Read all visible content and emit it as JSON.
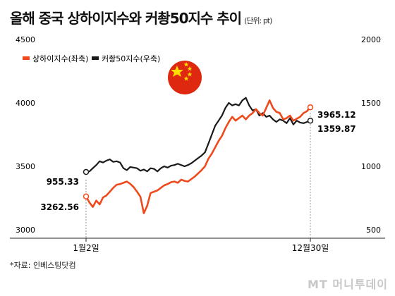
{
  "header": {
    "title": "올해 중국 상하이지수와 커촹50지수 추이",
    "unit": "(단위: pt)"
  },
  "source": "*자료: 인베스팅닷컴",
  "brand": {
    "logo_text": "MT 머니투데이"
  },
  "colors": {
    "shanghai": "#ee4a1c",
    "kechuang": "#1a1a1a",
    "flag_red": "#de2910",
    "flag_star": "#ffde00"
  },
  "chart_data": {
    "type": "line",
    "title": "올해 중국 상하이지수와 커촹50지수 추이",
    "x_ticks": [
      "1월2일",
      "12월30일"
    ],
    "y_left": {
      "ticks": [
        "3000",
        "3500",
        "4000",
        "4500"
      ],
      "ylim": [
        3000,
        4500
      ]
    },
    "y_right": {
      "ticks": [
        "500",
        "1000",
        "1500",
        "2000"
      ],
      "ylim": [
        500,
        2000
      ]
    },
    "grid": false,
    "legend_position": "top-left",
    "series": [
      {
        "name": "상하이지수(좌축)",
        "axis": "left",
        "start_label": "3262.56",
        "end_label": "3965.12",
        "values": [
          3262.56,
          3215,
          3180,
          3230,
          3200,
          3255,
          3270,
          3300,
          3330,
          3355,
          3360,
          3370,
          3380,
          3362,
          3336,
          3300,
          3260,
          3130,
          3190,
          3290,
          3300,
          3310,
          3330,
          3350,
          3360,
          3375,
          3380,
          3370,
          3395,
          3385,
          3380,
          3400,
          3420,
          3445,
          3470,
          3500,
          3560,
          3600,
          3650,
          3700,
          3740,
          3800,
          3850,
          3890,
          3860,
          3880,
          3900,
          3870,
          3900,
          3920,
          3950,
          3920,
          3900,
          3960,
          4020,
          3960,
          3930,
          3920,
          3870,
          3880,
          3900,
          3860,
          3875,
          3890,
          3920,
          3935,
          3965.12
        ]
      },
      {
        "name": "커촹50지수(우축)",
        "axis": "right",
        "start_label": "955.33",
        "end_label": "1359.87",
        "values": [
          955.33,
          960,
          985,
          1010,
          1040,
          1030,
          1045,
          1055,
          1035,
          1040,
          1030,
          985,
          970,
          995,
          990,
          985,
          965,
          975,
          960,
          985,
          980,
          960,
          985,
          1000,
          990,
          1005,
          1010,
          1020,
          1010,
          1000,
          1010,
          1025,
          1045,
          1065,
          1085,
          1110,
          1180,
          1250,
          1320,
          1360,
          1400,
          1460,
          1500,
          1480,
          1490,
          1480,
          1520,
          1540,
          1480,
          1440,
          1450,
          1400,
          1420,
          1390,
          1400,
          1370,
          1350,
          1370,
          1360,
          1340,
          1380,
          1330,
          1360,
          1345,
          1340,
          1350,
          1359.87
        ]
      }
    ]
  }
}
